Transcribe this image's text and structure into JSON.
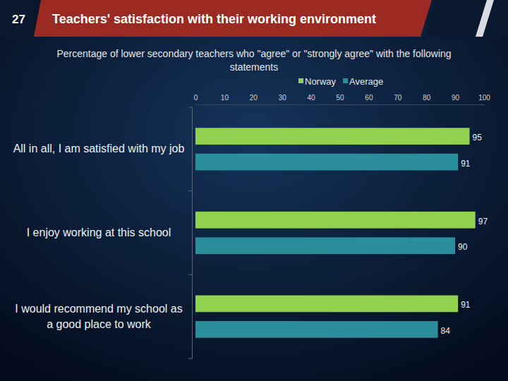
{
  "chart_data": {
    "type": "bar",
    "orientation": "horizontal",
    "title": "Teachers' satisfaction with their working environment",
    "subtitle": "Percentage of lower secondary teachers who \"agree\" or \"strongly agree\" with the following statements",
    "annotations": [
      "27"
    ],
    "categories": [
      "All in all, I am satisfied with my job",
      "I enjoy working at this school",
      "I would recommend my school as a good place to work"
    ],
    "series": [
      {
        "name": "Norway",
        "color": "#92d050",
        "values": [
          95,
          97,
          91
        ]
      },
      {
        "name": "Average",
        "color": "#2a8e9b",
        "values": [
          91,
          90,
          84
        ]
      }
    ],
    "xlim": [
      0,
      100
    ],
    "xticks": [
      0,
      10,
      20,
      30,
      40,
      50,
      60,
      70,
      80,
      90,
      100
    ],
    "grid": false,
    "legend": "top",
    "data_labels": true
  }
}
